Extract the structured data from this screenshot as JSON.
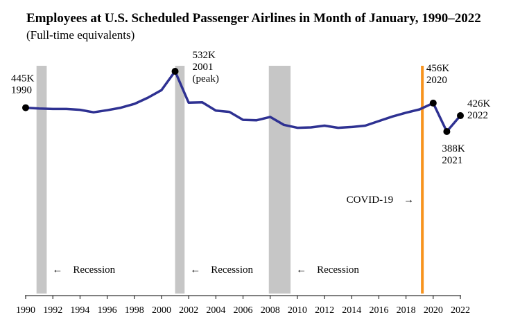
{
  "chart_data": {
    "type": "line",
    "title": "Employees at U.S. Scheduled Passenger Airlines in Month of January, 1990–2022",
    "subtitle": "(Full-time equivalents)",
    "xlabel": "",
    "ylabel": "",
    "xlim": [
      1990,
      2022
    ],
    "ylim": [
      180,
      560
    ],
    "x_ticks": [
      "1990",
      "1992",
      "1994",
      "1996",
      "1998",
      "2000",
      "2002",
      "2004",
      "2006",
      "2008",
      "2010",
      "2012",
      "2014",
      "2016",
      "2018",
      "2020",
      "2022"
    ],
    "series": [
      {
        "name": "",
        "color": "#2e3192",
        "x": [
          1990,
          1991,
          1992,
          1993,
          1994,
          1995,
          1996,
          1997,
          1998,
          1999,
          2000,
          2001,
          2002,
          2003,
          2004,
          2005,
          2006,
          2007,
          2008,
          2009,
          2010,
          2011,
          2012,
          2013,
          2014,
          2015,
          2016,
          2017,
          2018,
          2019,
          2020,
          2021,
          2022
        ],
        "y": [
          445,
          443,
          442,
          442,
          440,
          434,
          439,
          445,
          454,
          469,
          487,
          532,
          457,
          458,
          438,
          435,
          416,
          415,
          423,
          404,
          397,
          398,
          402,
          397,
          399,
          402,
          413,
          424,
          433,
          441,
          456,
          388,
          426
        ]
      }
    ],
    "recessions": [
      {
        "start": 1990.8,
        "end": 1991.55,
        "label": "Recession"
      },
      {
        "start": 2001.0,
        "end": 2001.7,
        "label": "Recession"
      },
      {
        "start": 2007.9,
        "end": 2009.5,
        "label": "Recession"
      }
    ],
    "covid": {
      "x": 2019.2,
      "label": "COVID-19",
      "color": "#f7931e"
    },
    "annotations": [
      {
        "x": 1990,
        "y": 445,
        "lines": [
          "445K",
          "1990"
        ]
      },
      {
        "x": 2001,
        "y": 532,
        "lines": [
          "532K",
          "2001",
          "(peak)"
        ]
      },
      {
        "x": 2020,
        "y": 456,
        "lines": [
          "456K",
          "2020"
        ]
      },
      {
        "x": 2021,
        "y": 388,
        "lines": [
          "388K",
          "2021"
        ]
      },
      {
        "x": 2022,
        "y": 426,
        "lines": [
          "426K",
          "2022"
        ]
      }
    ],
    "arrow_glyph": "←",
    "covid_arrow_glyph": "→",
    "grid": false,
    "legend": "none"
  }
}
